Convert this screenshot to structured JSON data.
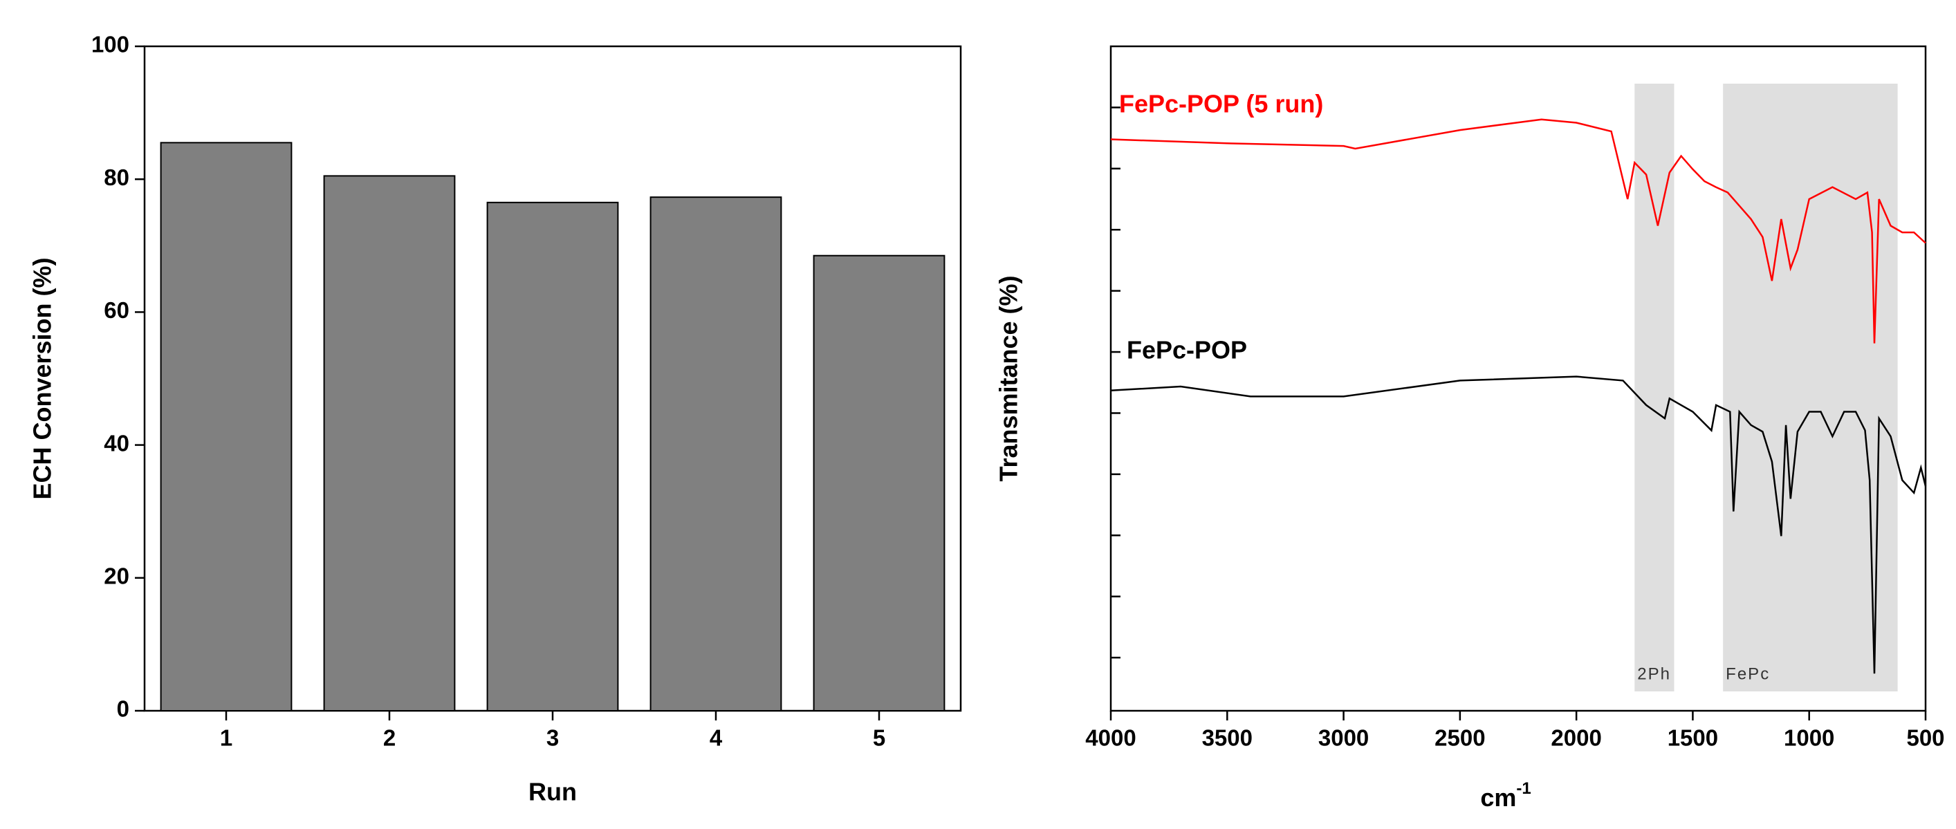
{
  "chart_data": [
    {
      "type": "bar",
      "x_label": "Run",
      "y_label": "ECH Conversion (%)",
      "categories": [
        "1",
        "2",
        "3",
        "4",
        "5"
      ],
      "values": [
        85.5,
        80.5,
        76.5,
        77.3,
        68.5
      ],
      "color": "#808080",
      "ylim": [
        0,
        100
      ],
      "yticks": [
        0,
        20,
        40,
        60,
        80,
        100
      ]
    },
    {
      "type": "line",
      "x_label": "cm",
      "x_label_sup": "-1",
      "y_label": "Transmitance (%)",
      "xlim": [
        4000,
        500
      ],
      "xticks": [
        4000,
        3500,
        3000,
        2500,
        2000,
        1500,
        1000,
        500
      ],
      "ylim": [
        0,
        100
      ],
      "regions": [
        {
          "label": "2Ph",
          "x": [
            1750,
            1580
          ]
        },
        {
          "label": "FePc",
          "x": [
            1370,
            620
          ]
        }
      ],
      "series": [
        {
          "name": "FePc-POP (5 run)",
          "color": "#ff0000",
          "x": [
            4000,
            3500,
            3000,
            2950,
            2500,
            2150,
            2000,
            1850,
            1780,
            1750,
            1700,
            1650,
            1600,
            1550,
            1500,
            1450,
            1400,
            1350,
            1300,
            1250,
            1200,
            1160,
            1120,
            1080,
            1050,
            1000,
            900,
            800,
            750,
            730,
            720,
            700,
            650,
            600,
            550,
            500
          ],
          "values": [
            86,
            85.4,
            85,
            84.6,
            87.4,
            89,
            88.5,
            87.2,
            77,
            82.5,
            80.7,
            73,
            81,
            83.5,
            81.5,
            79.7,
            78.8,
            78,
            76,
            74,
            71.3,
            64.7,
            74,
            66.6,
            69.4,
            77,
            78.8,
            77,
            78,
            72,
            55.3,
            77,
            73,
            72,
            72,
            70.4
          ]
        },
        {
          "name": "FePc-POP",
          "color": "#000000",
          "x": [
            4000,
            3700,
            3400,
            3000,
            2500,
            2000,
            1800,
            1700,
            1620,
            1600,
            1550,
            1500,
            1420,
            1400,
            1340,
            1325,
            1300,
            1250,
            1200,
            1160,
            1120,
            1100,
            1080,
            1050,
            1000,
            950,
            900,
            850,
            800,
            760,
            740,
            720,
            700,
            650,
            600,
            550,
            520,
            500
          ],
          "values": [
            48.2,
            48.8,
            47.3,
            47.3,
            49.7,
            50.3,
            49.7,
            46,
            44,
            47,
            46,
            45,
            42.2,
            46,
            45,
            30,
            45,
            43,
            42,
            37.5,
            26.3,
            43,
            31.9,
            42,
            45,
            45,
            41.3,
            45,
            45,
            42.2,
            34.7,
            5.6,
            44,
            41.3,
            34.7,
            32.8,
            36.6,
            33.8
          ]
        }
      ]
    }
  ]
}
